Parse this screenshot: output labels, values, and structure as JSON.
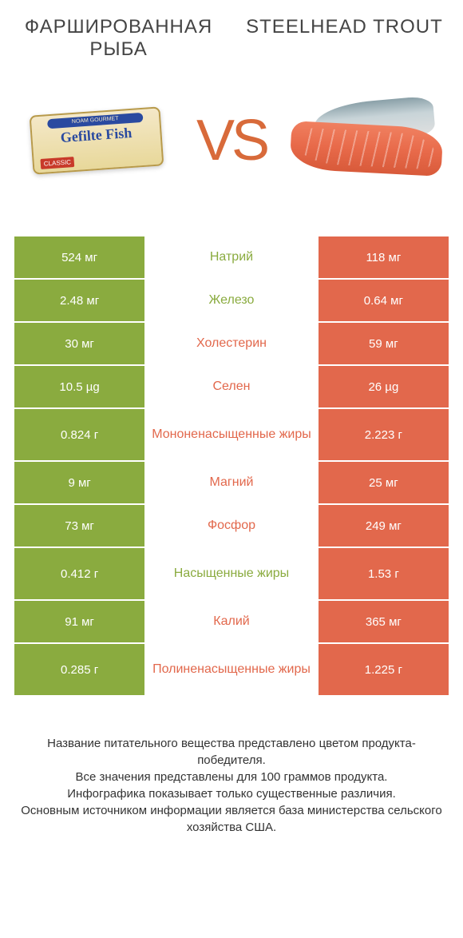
{
  "colors": {
    "green": "#8aab3f",
    "orange": "#e2684c",
    "vs": "#d86a3a",
    "title": "#444444",
    "footnote": "#333333",
    "background": "#ffffff"
  },
  "fonts": {
    "title_size": 24,
    "vs_size": 72,
    "cell_value_size": 15,
    "cell_label_size": 16,
    "footnote_size": 15
  },
  "header": {
    "left_title": "ФАРШИРОВАННАЯ РЫБА",
    "right_title": "STEELHEAD TROUT",
    "vs_text": "VS",
    "left_image_alt": "Gefilte Fish package",
    "right_image_alt": "Steelhead trout fillet",
    "gefilte_brand": "NOAM GOURMET",
    "gefilte_text": "Gefilte Fish",
    "gefilte_tag": "CLASSIC"
  },
  "rows": [
    {
      "label": "Натрий",
      "left": "524 мг",
      "right": "118 мг",
      "winner": "left"
    },
    {
      "label": "Железо",
      "left": "2.48 мг",
      "right": "0.64 мг",
      "winner": "left"
    },
    {
      "label": "Холестерин",
      "left": "30 мг",
      "right": "59 мг",
      "winner": "right"
    },
    {
      "label": "Селен",
      "left": "10.5 µg",
      "right": "26 µg",
      "winner": "right"
    },
    {
      "label": "Мононенасыщенные жиры",
      "left": "0.824 г",
      "right": "2.223 г",
      "winner": "right",
      "tall": true
    },
    {
      "label": "Магний",
      "left": "9 мг",
      "right": "25 мг",
      "winner": "right"
    },
    {
      "label": "Фосфор",
      "left": "73 мг",
      "right": "249 мг",
      "winner": "right"
    },
    {
      "label": "Насыщенные жиры",
      "left": "0.412 г",
      "right": "1.53 г",
      "winner": "left",
      "tall": true
    },
    {
      "label": "Калий",
      "left": "91 мг",
      "right": "365 мг",
      "winner": "right"
    },
    {
      "label": "Полиненасыщенные жиры",
      "left": "0.285 г",
      "right": "1.225 г",
      "winner": "right",
      "tall": true
    }
  ],
  "footnotes": [
    "Название питательного вещества представлено цветом продукта-победителя.",
    "Все значения представлены для 100 граммов продукта.",
    "Инфографика показывает только существенные различия.",
    "Основным источником информации является база министерства сельского хозяйства США."
  ]
}
